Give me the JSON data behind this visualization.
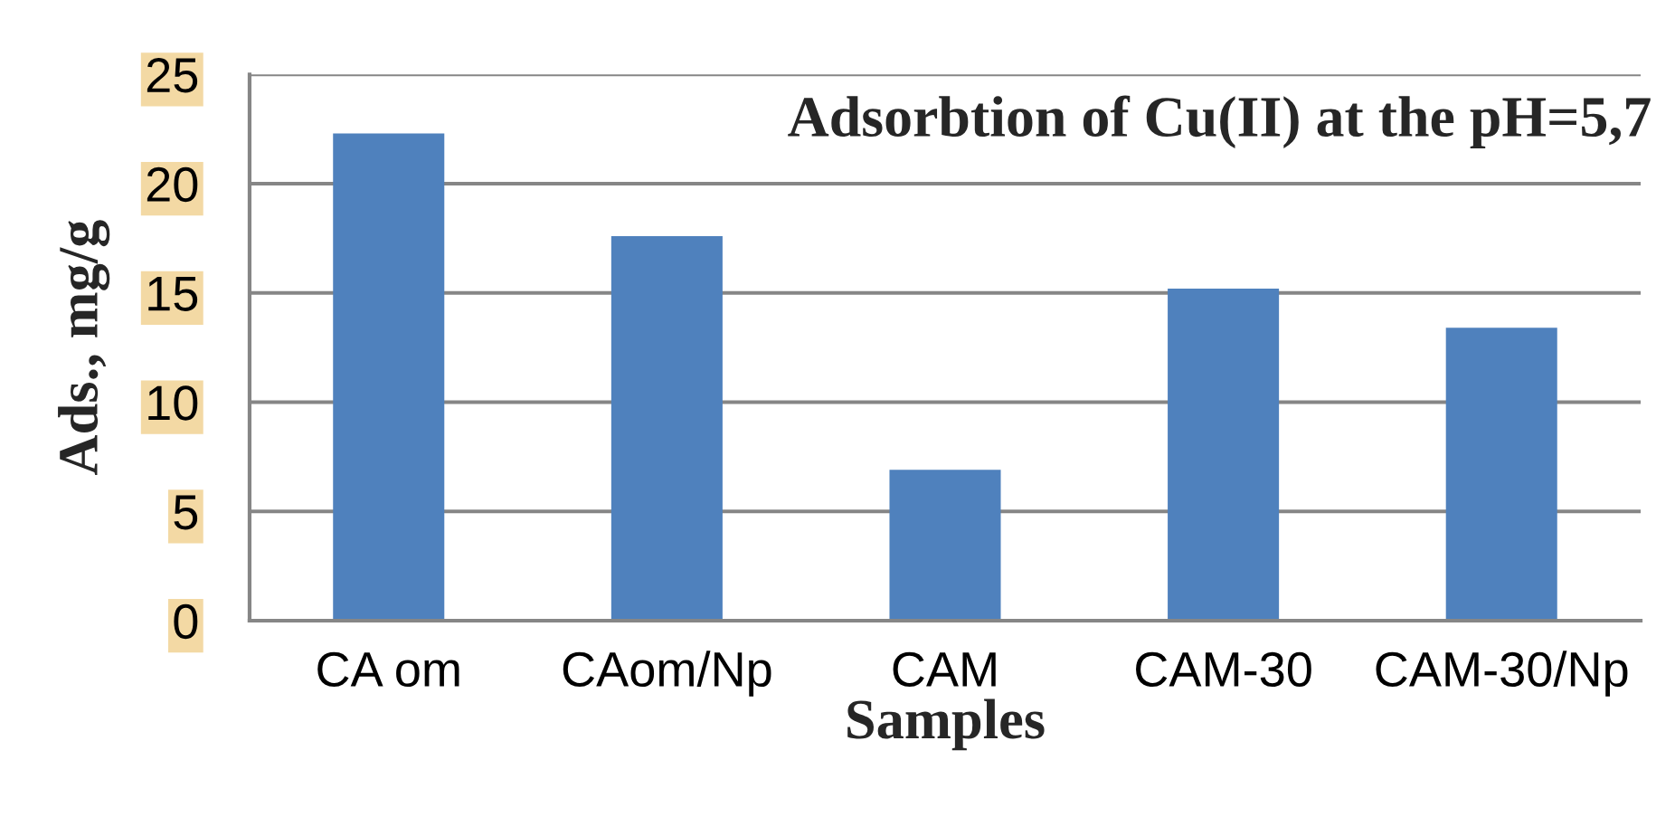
{
  "chart_data": {
    "type": "bar",
    "title": "Adsorbtion of Cu(II) at the pH=5,7",
    "xlabel": "Samples",
    "ylabel": "Ads., mg/g",
    "categories": [
      "CA om",
      "CAom/Np",
      "CAM",
      "CAM-30",
      "CAM-30/Np"
    ],
    "values": [
      22.3,
      17.6,
      6.9,
      15.2,
      13.4
    ],
    "color": "#4f81bd",
    "ylim": [
      0,
      25
    ],
    "yticks": [
      0,
      5,
      10,
      15,
      20,
      25
    ],
    "grid": "y"
  }
}
